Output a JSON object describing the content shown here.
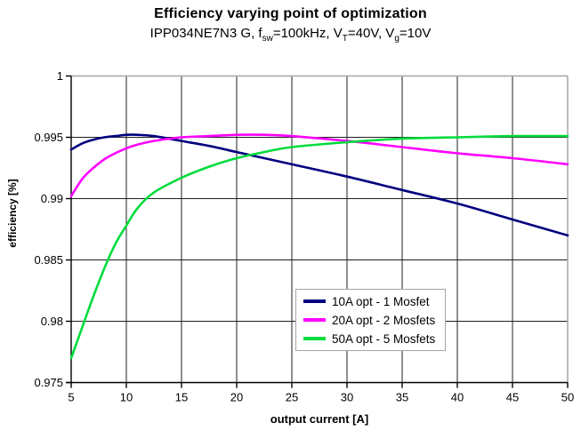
{
  "figure": {
    "title": "Efficiency varying point of optimization",
    "subtitle_parts": {
      "p1": "IPP034NE7N3 G, f",
      "s1": "sw",
      "p2": "=100kHz, V",
      "s2": "T",
      "p3": "=40V, V",
      "s3": "g",
      "p4": "=10V"
    }
  },
  "chart_data": {
    "type": "line",
    "title": "Efficiency varying point of optimization",
    "subtitle": "IPP034NE7N3 G, fsw=100kHz, VT=40V, Vg=10V",
    "xlabel": "output current [A]",
    "ylabel": "efficiency [%]",
    "xlim": [
      5,
      50
    ],
    "ylim": [
      0.975,
      1
    ],
    "x_ticks": [
      5,
      10,
      15,
      20,
      25,
      30,
      35,
      40,
      45,
      50
    ],
    "y_ticks": [
      1,
      0.995,
      0.99,
      0.985,
      0.98,
      0.975
    ],
    "y_tick_labels": [
      "1",
      "0.995",
      "0.99",
      "0.985",
      "0.98",
      "0.975"
    ],
    "grid": true,
    "legend_position": "inside-bottom-center",
    "colors": {
      "gridline": "#1f1f1f",
      "plot_border": "#a6a6a6",
      "axis": "#000000",
      "legend_border": "#a6a6a6"
    },
    "x": [
      5,
      6,
      7,
      8,
      9,
      10,
      11,
      12.5,
      15,
      17.5,
      20,
      22.5,
      25,
      30,
      35,
      40,
      45,
      50
    ],
    "series": [
      {
        "name": "10A opt - 1 Mosfet",
        "color": "#000080",
        "values": [
          0.994,
          0.9945,
          0.9948,
          0.995,
          0.9951,
          0.9952,
          0.9952,
          0.9951,
          0.9947,
          0.9943,
          0.9938,
          0.9933,
          0.9928,
          0.9918,
          0.9907,
          0.9896,
          0.9883,
          0.987
        ]
      },
      {
        "name": "20A opt - 2 Mosfets",
        "color": "#ff00ff",
        "values": [
          0.9902,
          0.9916,
          0.9925,
          0.9932,
          0.9937,
          0.9941,
          0.9944,
          0.9947,
          0.995,
          0.9951,
          0.9952,
          0.9952,
          0.9951,
          0.9947,
          0.9942,
          0.9937,
          0.9933,
          0.9928
        ]
      },
      {
        "name": "50A opt - 5 Mosfets",
        "color": "#00dc3c",
        "values": [
          0.977,
          0.9795,
          0.982,
          0.9843,
          0.9863,
          0.9878,
          0.9892,
          0.9905,
          0.9917,
          0.9926,
          0.9933,
          0.9938,
          0.9942,
          0.9946,
          0.9949,
          0.995,
          0.9951,
          0.9951
        ]
      }
    ]
  }
}
